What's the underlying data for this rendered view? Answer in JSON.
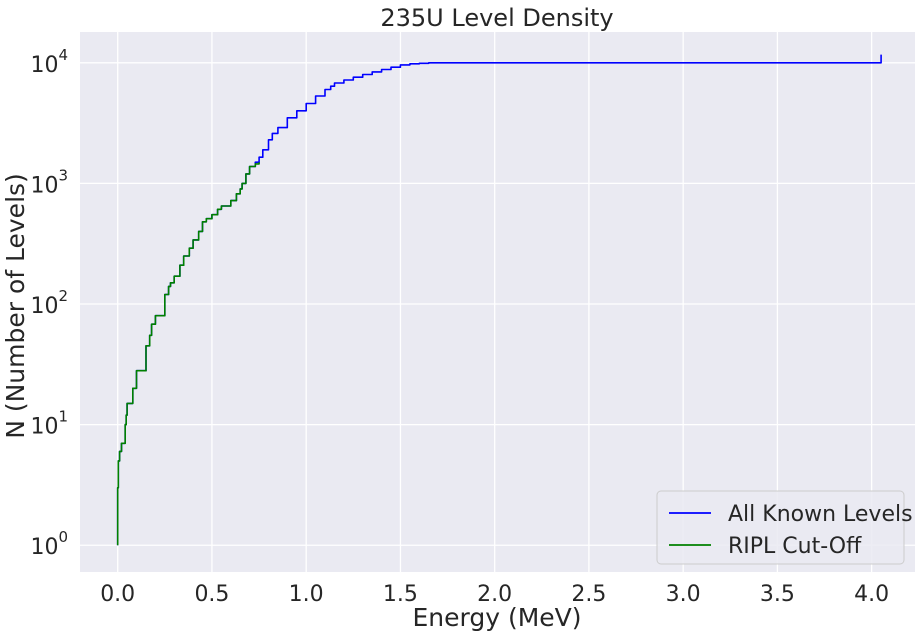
{
  "chart_data": {
    "type": "line",
    "title": "235U Level Density",
    "xlabel": "Energy (MeV)",
    "ylabel": "N (Number of Levels)",
    "xscale": "linear",
    "yscale": "log",
    "xlim": [
      -0.2,
      4.23
    ],
    "ylim": [
      0.6,
      18000
    ],
    "xticks": [
      "0.0",
      "0.5",
      "1.0",
      "1.5",
      "2.0",
      "2.5",
      "3.0",
      "3.5",
      "4.0"
    ],
    "yticks": [
      "1",
      "10",
      "100",
      "1000",
      "10000"
    ],
    "grid": true,
    "background": "#eaeaf2",
    "legend_position": "lower right",
    "series": [
      {
        "name": "All Known Levels",
        "color": "#0000ff",
        "x": [
          0.0,
          0.0,
          0.003,
          0.01,
          0.02,
          0.04,
          0.045,
          0.05,
          0.08,
          0.1,
          0.15,
          0.17,
          0.18,
          0.2,
          0.25,
          0.27,
          0.28,
          0.3,
          0.33,
          0.35,
          0.38,
          0.4,
          0.43,
          0.45,
          0.47,
          0.5,
          0.53,
          0.55,
          0.6,
          0.63,
          0.65,
          0.66,
          0.68,
          0.7,
          0.73,
          0.75,
          0.77,
          0.8,
          0.82,
          0.85,
          0.9,
          0.95,
          1.0,
          1.05,
          1.1,
          1.13,
          1.15,
          1.2,
          1.25,
          1.3,
          1.35,
          1.4,
          1.45,
          1.5,
          1.55,
          1.6,
          1.65,
          4.05
        ],
        "y": [
          1,
          3,
          5,
          6,
          7,
          10,
          12,
          15,
          20,
          28,
          45,
          55,
          68,
          80,
          120,
          140,
          150,
          170,
          210,
          250,
          290,
          340,
          400,
          480,
          510,
          550,
          610,
          650,
          720,
          820,
          900,
          1000,
          1200,
          1380,
          1500,
          1650,
          1900,
          2300,
          2600,
          2900,
          3500,
          4000,
          4600,
          5300,
          6000,
          6400,
          6800,
          7200,
          7600,
          8000,
          8400,
          8800,
          9200,
          9600,
          9800,
          9900,
          10000,
          11700
        ]
      },
      {
        "name": "RIPL Cut-Off",
        "color": "#008000",
        "x": [
          0.0,
          0.0,
          0.003,
          0.01,
          0.02,
          0.04,
          0.045,
          0.05,
          0.08,
          0.1,
          0.15,
          0.17,
          0.18,
          0.2,
          0.25,
          0.27,
          0.28,
          0.3,
          0.33,
          0.35,
          0.38,
          0.4,
          0.43,
          0.45,
          0.47,
          0.5,
          0.53,
          0.55,
          0.6,
          0.63,
          0.65,
          0.66,
          0.68,
          0.7,
          0.73,
          0.75
        ],
        "y": [
          1,
          3,
          5,
          6,
          7,
          10,
          12,
          15,
          20,
          28,
          45,
          55,
          68,
          80,
          120,
          140,
          150,
          170,
          210,
          250,
          290,
          340,
          400,
          480,
          510,
          550,
          610,
          650,
          720,
          820,
          900,
          1000,
          1200,
          1380,
          1450,
          1500
        ]
      }
    ]
  }
}
